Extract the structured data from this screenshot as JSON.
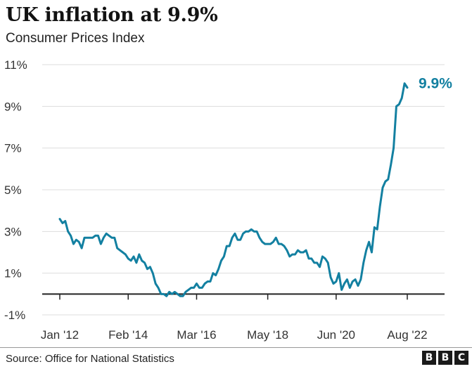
{
  "header": {
    "title": "UK inflation at 9.9%",
    "subtitle": "Consumer Prices Index"
  },
  "footer": {
    "source": "Source: Office for National Statistics",
    "logo_letters": [
      "B",
      "B",
      "C"
    ]
  },
  "colors": {
    "line": "#1380A1",
    "grid": "#dddddd",
    "zero_line": "#222222",
    "label": "#1380A1"
  },
  "chart_data": {
    "type": "line",
    "title": "UK inflation at 9.9%",
    "subtitle": "Consumer Prices Index",
    "xlabel": "",
    "ylabel": "",
    "ylim": [
      -1,
      11
    ],
    "yticks": [
      -1,
      1,
      3,
      5,
      7,
      9,
      11
    ],
    "ytick_labels": [
      "-1%",
      "1%",
      "3%",
      "5%",
      "7%",
      "9%",
      "11%"
    ],
    "xticks": [
      "2012-01",
      "2014-02",
      "2016-03",
      "2018-05",
      "2020-06",
      "2022-08"
    ],
    "xtick_labels": [
      "Jan '12",
      "Feb '14",
      "Mar '16",
      "May '18",
      "Jun '20",
      "Aug '22"
    ],
    "grid": true,
    "end_label": "9.9%",
    "series": [
      {
        "name": "",
        "x": [
          "2012-01",
          "2012-02",
          "2012-03",
          "2012-04",
          "2012-05",
          "2012-06",
          "2012-07",
          "2012-08",
          "2012-09",
          "2012-10",
          "2012-11",
          "2012-12",
          "2013-01",
          "2013-02",
          "2013-03",
          "2013-04",
          "2013-05",
          "2013-06",
          "2013-07",
          "2013-08",
          "2013-09",
          "2013-10",
          "2013-11",
          "2013-12",
          "2014-01",
          "2014-02",
          "2014-03",
          "2014-04",
          "2014-05",
          "2014-06",
          "2014-07",
          "2014-08",
          "2014-09",
          "2014-10",
          "2014-11",
          "2014-12",
          "2015-01",
          "2015-02",
          "2015-03",
          "2015-04",
          "2015-05",
          "2015-06",
          "2015-07",
          "2015-08",
          "2015-09",
          "2015-10",
          "2015-11",
          "2015-12",
          "2016-01",
          "2016-02",
          "2016-03",
          "2016-04",
          "2016-05",
          "2016-06",
          "2016-07",
          "2016-08",
          "2016-09",
          "2016-10",
          "2016-11",
          "2016-12",
          "2017-01",
          "2017-02",
          "2017-03",
          "2017-04",
          "2017-05",
          "2017-06",
          "2017-07",
          "2017-08",
          "2017-09",
          "2017-10",
          "2017-11",
          "2017-12",
          "2018-01",
          "2018-02",
          "2018-03",
          "2018-04",
          "2018-05",
          "2018-06",
          "2018-07",
          "2018-08",
          "2018-09",
          "2018-10",
          "2018-11",
          "2018-12",
          "2019-01",
          "2019-02",
          "2019-03",
          "2019-04",
          "2019-05",
          "2019-06",
          "2019-07",
          "2019-08",
          "2019-09",
          "2019-10",
          "2019-11",
          "2019-12",
          "2020-01",
          "2020-02",
          "2020-03",
          "2020-04",
          "2020-05",
          "2020-06",
          "2020-07",
          "2020-08",
          "2020-09",
          "2020-10",
          "2020-11",
          "2020-12",
          "2021-01",
          "2021-02",
          "2021-03",
          "2021-04",
          "2021-05",
          "2021-06",
          "2021-07",
          "2021-08",
          "2021-09",
          "2021-10",
          "2021-11",
          "2021-12",
          "2022-01",
          "2022-02",
          "2022-03",
          "2022-04",
          "2022-05",
          "2022-06",
          "2022-07",
          "2022-08"
        ],
        "values": [
          3.6,
          3.4,
          3.5,
          3.0,
          2.8,
          2.4,
          2.6,
          2.5,
          2.2,
          2.7,
          2.7,
          2.7,
          2.7,
          2.8,
          2.8,
          2.4,
          2.7,
          2.9,
          2.8,
          2.7,
          2.7,
          2.2,
          2.1,
          2.0,
          1.9,
          1.7,
          1.6,
          1.8,
          1.5,
          1.9,
          1.6,
          1.5,
          1.2,
          1.3,
          1.0,
          0.5,
          0.3,
          0.0,
          0.0,
          -0.1,
          0.1,
          0.0,
          0.1,
          0.0,
          -0.1,
          -0.1,
          0.1,
          0.2,
          0.3,
          0.3,
          0.5,
          0.3,
          0.3,
          0.5,
          0.6,
          0.6,
          1.0,
          0.9,
          1.2,
          1.6,
          1.8,
          2.3,
          2.3,
          2.7,
          2.9,
          2.6,
          2.6,
          2.9,
          3.0,
          3.0,
          3.1,
          3.0,
          3.0,
          2.7,
          2.5,
          2.4,
          2.4,
          2.4,
          2.5,
          2.7,
          2.4,
          2.4,
          2.3,
          2.1,
          1.8,
          1.9,
          1.9,
          2.1,
          2.0,
          2.0,
          2.1,
          1.7,
          1.7,
          1.5,
          1.5,
          1.3,
          1.8,
          1.7,
          1.5,
          0.8,
          0.5,
          0.6,
          1.0,
          0.2,
          0.5,
          0.7,
          0.3,
          0.6,
          0.7,
          0.4,
          0.7,
          1.5,
          2.1,
          2.5,
          2.0,
          3.2,
          3.1,
          4.2,
          5.1,
          5.4,
          5.5,
          6.2,
          7.0,
          9.0,
          9.1,
          9.4,
          10.1,
          9.9
        ]
      }
    ]
  }
}
